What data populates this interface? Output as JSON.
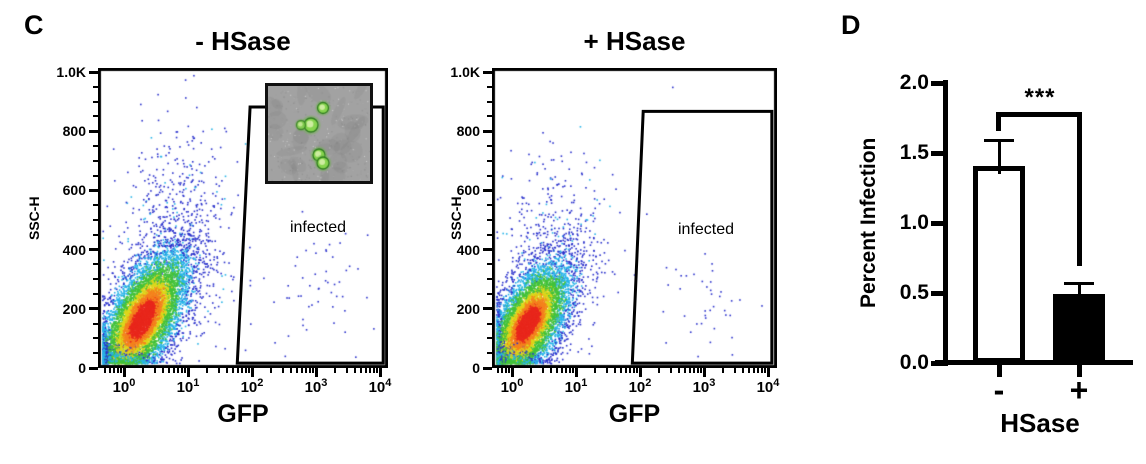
{
  "panels": {
    "c": "C",
    "d": "D"
  },
  "density_palette": [
    "#2a31cc",
    "#27b4e8",
    "#43c23a",
    "#ddd71a",
    "#f4821d",
    "#e8271c"
  ],
  "chart_data": [
    {
      "type": "scatter",
      "variant": "flow-cytometry-density",
      "title": "- HSase",
      "xlabel": "GFP",
      "ylabel": "SSC-H",
      "x_scale": "log10",
      "x_tick_exponents": [
        0,
        1,
        2,
        3,
        4
      ],
      "ylim": [
        0,
        1000
      ],
      "y_ticks": [
        {
          "v": 0,
          "label": "0"
        },
        {
          "v": 200,
          "label": "200"
        },
        {
          "v": 400,
          "label": "400"
        },
        {
          "v": 600,
          "label": "600"
        },
        {
          "v": 800,
          "label": "800"
        },
        {
          "v": 1000,
          "label": "1.0K"
        }
      ],
      "gate": {
        "label": "infected",
        "polygon_logx_y": [
          [
            1.97,
            880
          ],
          [
            4.05,
            880
          ],
          [
            4.05,
            3
          ],
          [
            1.77,
            3
          ]
        ]
      },
      "populations": {
        "main": {
          "n": 8500,
          "center_logx": 0.28,
          "center_y": 155,
          "sigma_logx": 0.36,
          "sigma_y": 118,
          "rho": 0.62
        },
        "tail": {
          "n": 650,
          "center_logx": 0.75,
          "center_y": 430,
          "sigma_logx": 0.42,
          "sigma_y": 185
        },
        "gated": {
          "n": 55,
          "center_logx": 2.95,
          "center_y": 255,
          "sigma_logx": 0.42,
          "sigma_y": 115
        },
        "strays": [
          [
            0.95,
            975
          ],
          [
            1.08,
            990
          ]
        ]
      },
      "inset": {
        "bg": "#a2a2a2",
        "cell_color": "#86d44e",
        "cells": [
          {
            "x": 55,
            "y": 22,
            "r": 5.5,
            "a": 1
          },
          {
            "x": 43,
            "y": 39,
            "r": 7,
            "a": 1
          },
          {
            "x": 33,
            "y": 39,
            "r": 4.5,
            "a": 0.8
          },
          {
            "x": 51,
            "y": 69,
            "r": 6,
            "a": 1
          },
          {
            "x": 55,
            "y": 77,
            "r": 6,
            "a": 1
          }
        ]
      }
    },
    {
      "type": "scatter",
      "variant": "flow-cytometry-density",
      "title": "+ HSase",
      "xlabel": "GFP",
      "ylabel": "SSC-H",
      "x_scale": "log10",
      "x_tick_exponents": [
        0,
        1,
        2,
        3,
        4
      ],
      "ylim": [
        0,
        1000
      ],
      "y_ticks": [
        {
          "v": 0,
          "label": "0"
        },
        {
          "v": 200,
          "label": "200"
        },
        {
          "v": 400,
          "label": "400"
        },
        {
          "v": 600,
          "label": "600"
        },
        {
          "v": 800,
          "label": "800"
        },
        {
          "v": 1000,
          "label": "1.0K"
        }
      ],
      "gate": {
        "label": "infected",
        "polygon_logx_y": [
          [
            2.05,
            865
          ],
          [
            4.06,
            865
          ],
          [
            4.06,
            3
          ],
          [
            1.88,
            3
          ]
        ]
      },
      "populations": {
        "main": {
          "n": 8000,
          "center_logx": 0.24,
          "center_y": 140,
          "sigma_logx": 0.33,
          "sigma_y": 105,
          "rho": 0.6
        },
        "tail": {
          "n": 450,
          "center_logx": 0.7,
          "center_y": 400,
          "sigma_logx": 0.4,
          "sigma_y": 170
        },
        "gated": {
          "n": 40,
          "center_logx": 2.95,
          "center_y": 225,
          "sigma_logx": 0.38,
          "sigma_y": 100
        },
        "strays": [
          [
            2.5,
            950
          ]
        ]
      }
    },
    {
      "type": "bar",
      "title": "",
      "xlabel": "HSase",
      "ylabel": "Percent Infection",
      "categories": [
        "-",
        "+"
      ],
      "values": [
        1.41,
        0.49
      ],
      "errors": [
        0.18,
        0.08
      ],
      "ylim": [
        0,
        2
      ],
      "y_ticks": [
        {
          "v": 0,
          "label": "0.0"
        },
        {
          "v": 0.5,
          "label": "0.5"
        },
        {
          "v": 1,
          "label": "1.0"
        },
        {
          "v": 1.5,
          "label": "1.5"
        },
        {
          "v": 2,
          "label": "2.0"
        }
      ],
      "bar_colors": [
        "#ffffff",
        "#000000"
      ],
      "significance": {
        "label": "***",
        "bracket_top": 1.79,
        "left_drop_to": 1.66,
        "right_drop_to": 0.69
      }
    }
  ]
}
